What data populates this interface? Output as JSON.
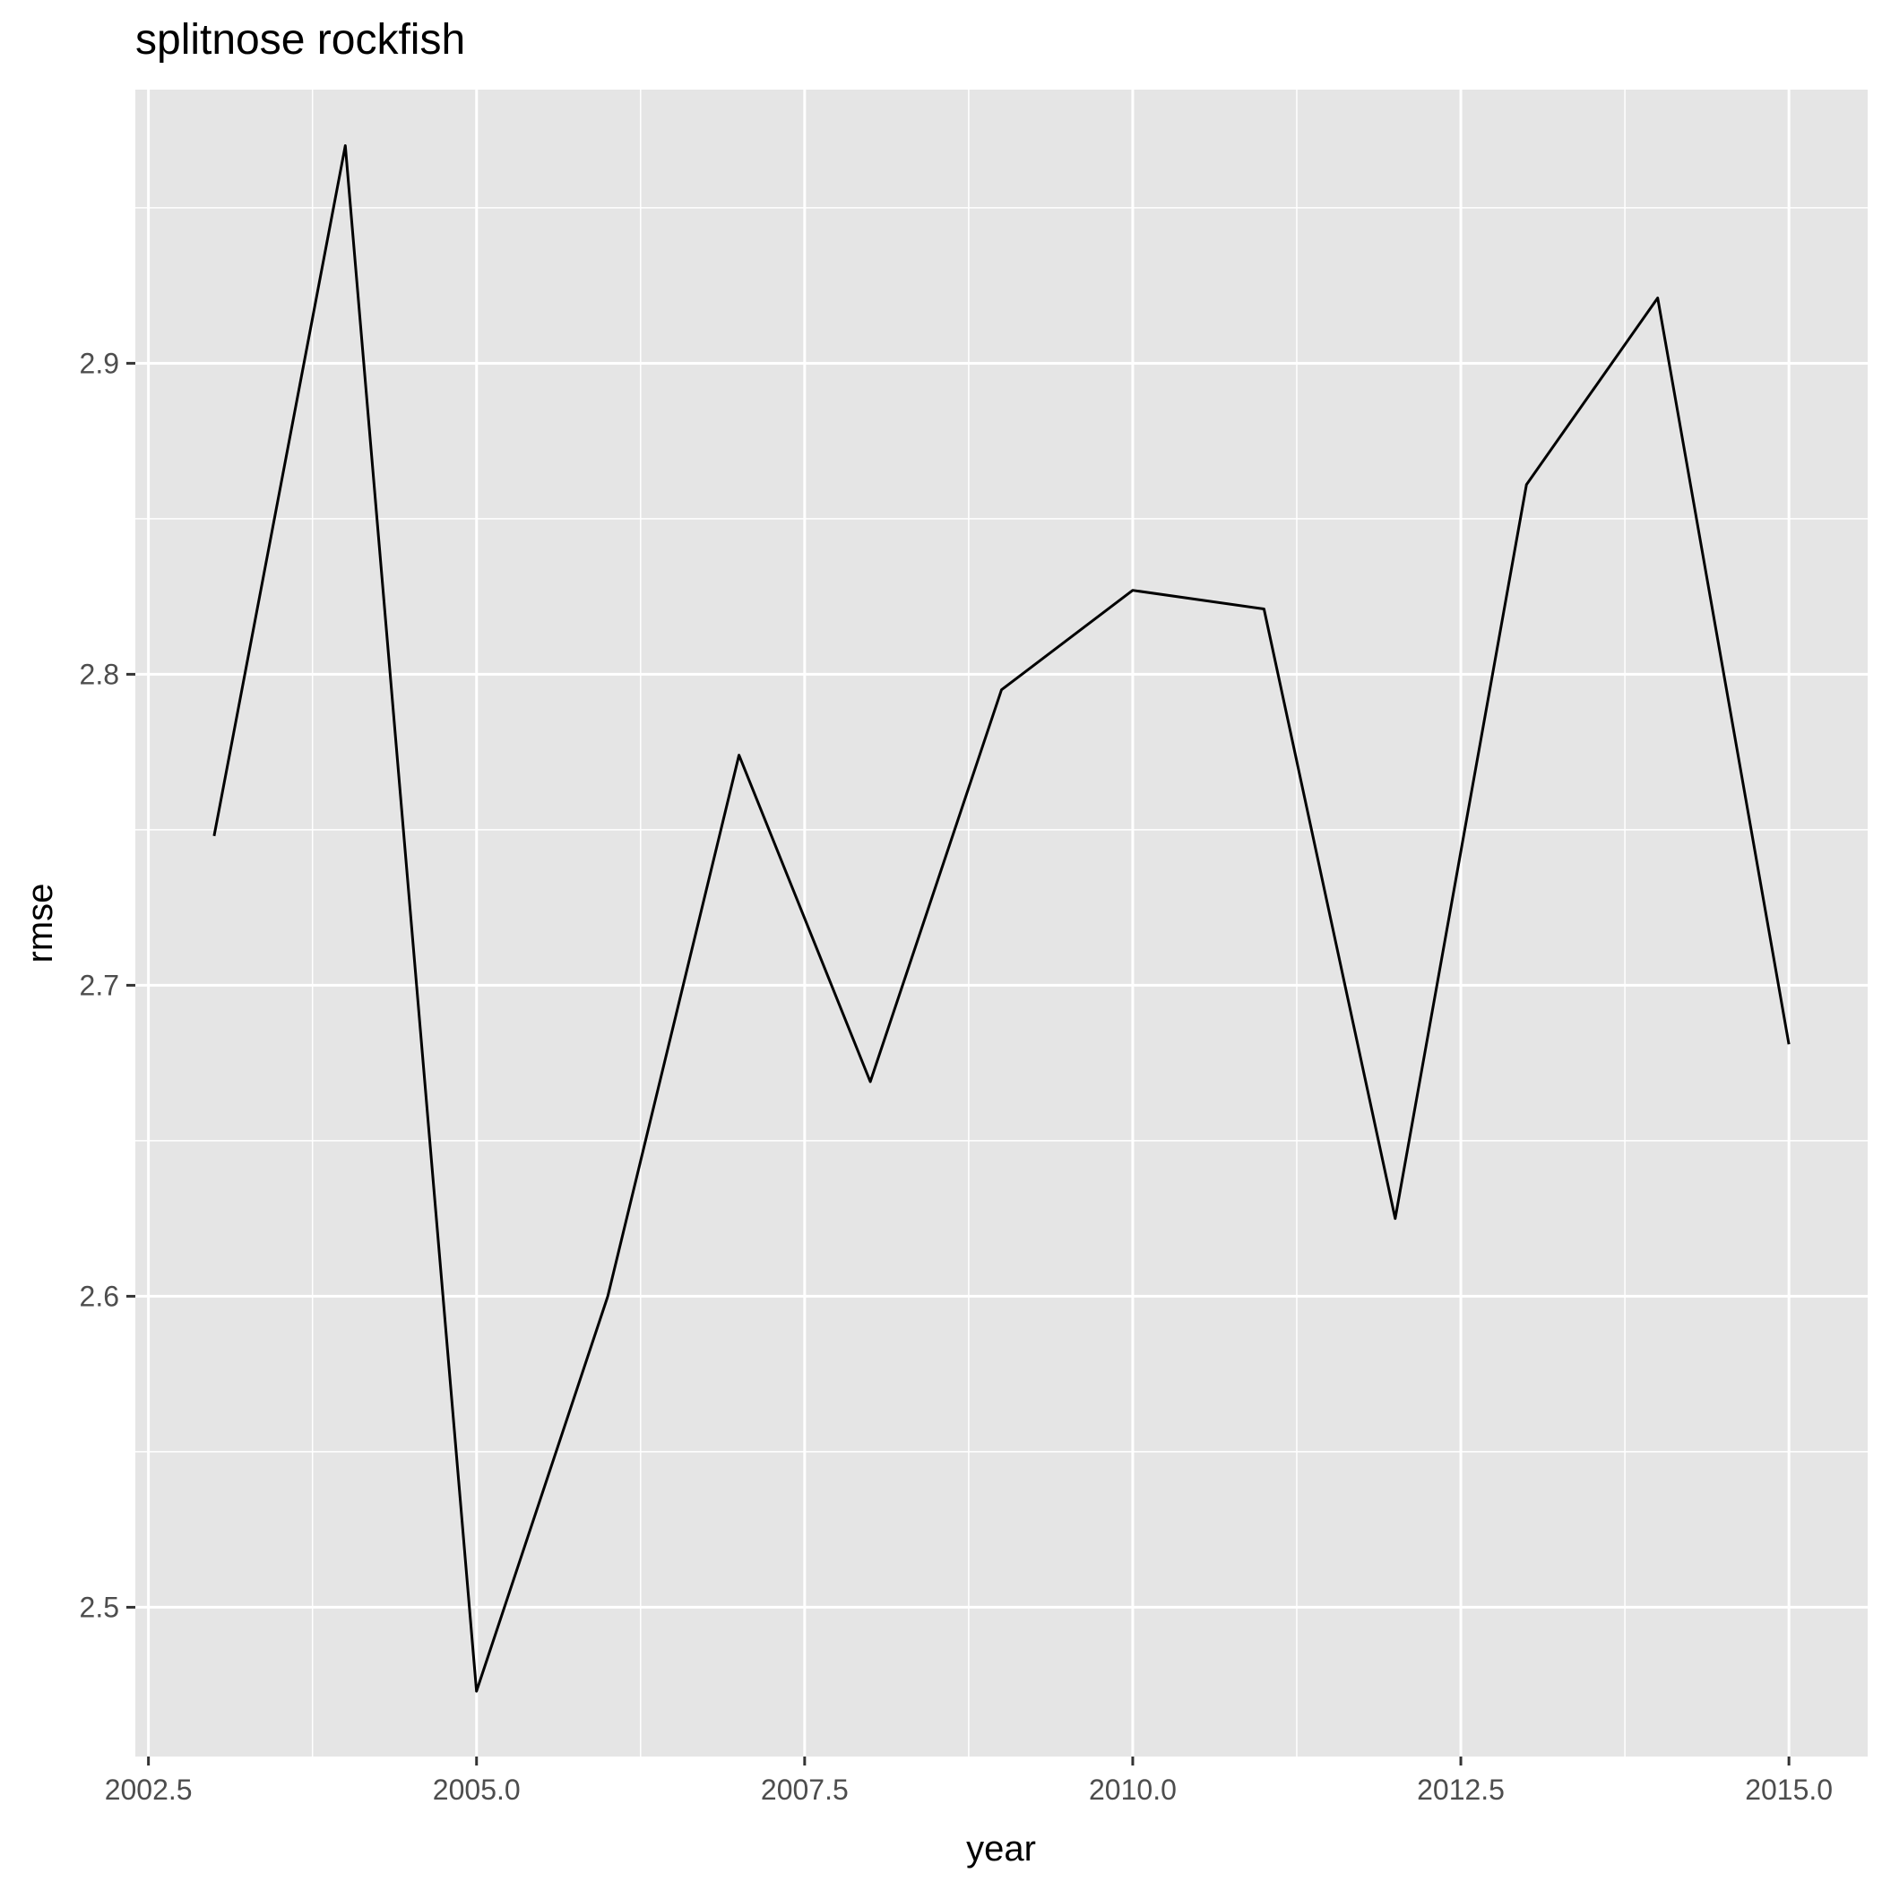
{
  "chart_data": {
    "type": "line",
    "title": "splitnose rockfish",
    "xlabel": "year",
    "ylabel": "rmse",
    "xlim": [
      2002.4,
      2015.6
    ],
    "ylim": [
      2.452,
      2.988
    ],
    "x_ticks": [
      2002.5,
      2005.0,
      2007.5,
      2010.0,
      2012.5,
      2015.0
    ],
    "x_tick_labels": [
      "2002.5",
      "2005.0",
      "2007.5",
      "2010.0",
      "2012.5",
      "2015.0"
    ],
    "y_ticks": [
      2.5,
      2.6,
      2.7,
      2.8,
      2.9
    ],
    "y_tick_labels": [
      "2.5",
      "2.6",
      "2.7",
      "2.8",
      "2.9"
    ],
    "grid": true,
    "background_color": "#e5e5e5",
    "grid_color": "#ffffff",
    "series": [
      {
        "color": "#000000",
        "x": [
          2003,
          2004,
          2005,
          2006,
          2007,
          2008,
          2009,
          2010,
          2011,
          2012,
          2013,
          2014,
          2015
        ],
        "y": [
          2.748,
          2.97,
          2.473,
          2.6,
          2.774,
          2.669,
          2.795,
          2.827,
          2.821,
          2.625,
          2.861,
          2.921,
          2.681
        ]
      }
    ]
  }
}
